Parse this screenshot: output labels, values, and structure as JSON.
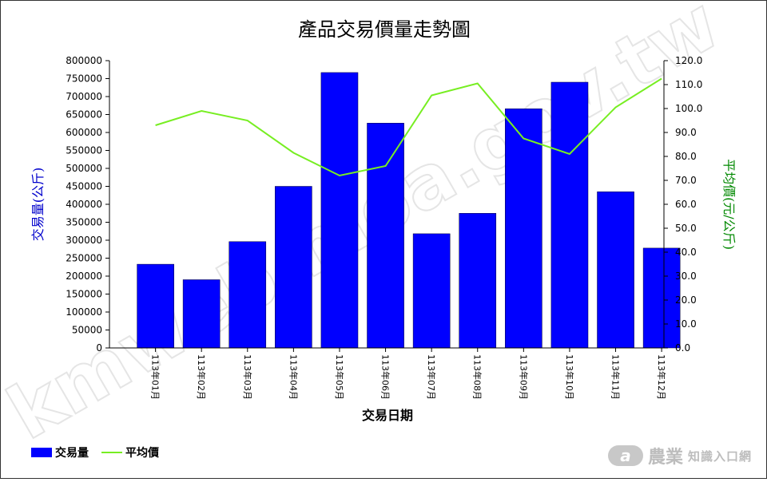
{
  "chart_data": {
    "type": "bar",
    "title": "產品交易價量走勢圖",
    "xlabel": "交易日期",
    "ylabel": "交易量(公斤)",
    "y2label": "平均價(元/公斤)",
    "categories": [
      "113年01月",
      "113年02月",
      "113年03月",
      "113年04月",
      "113年05月",
      "113年06月",
      "113年07月",
      "113年08月",
      "113年09月",
      "113年10月",
      "113年11月",
      "113年12月"
    ],
    "series": [
      {
        "name": "交易量",
        "type": "bar",
        "axis": "left",
        "color": "#0000ff",
        "values": [
          233000,
          190000,
          296000,
          450000,
          767000,
          626000,
          318000,
          375000,
          666000,
          740000,
          435000,
          278000
        ]
      },
      {
        "name": "平均價",
        "type": "line",
        "axis": "right",
        "color": "#77ee22",
        "values": [
          93.0,
          99.0,
          95.0,
          81.5,
          72.0,
          76.0,
          105.5,
          110.5,
          87.5,
          81.0,
          100.5,
          112.5
        ]
      }
    ],
    "ylim": [
      0,
      800000
    ],
    "y2lim": [
      0,
      120
    ],
    "yticks": [
      "0",
      "50000",
      "100000",
      "150000",
      "200000",
      "250000",
      "300000",
      "350000",
      "400000",
      "450000",
      "500000",
      "550000",
      "600000",
      "650000",
      "700000",
      "750000",
      "800000"
    ],
    "y2ticks": [
      "0.0",
      "10.0",
      "20.0",
      "30.0",
      "40.0",
      "50.0",
      "60.0",
      "70.0",
      "80.0",
      "90.0",
      "100.0",
      "110.0",
      "120.0"
    ],
    "grid": false,
    "legend_position": "bottom-left"
  },
  "legend": {
    "bar_label": "交易量",
    "line_label": "平均價"
  },
  "watermark": "kmweb.moa.gov.tw",
  "logo": {
    "big": "農業",
    "small": "知識入口網",
    "mark": "a"
  },
  "colors": {
    "bar": "#0000ff",
    "line": "#77ee22",
    "left_axis_label": "#0000cc",
    "right_axis_label": "#008800"
  }
}
